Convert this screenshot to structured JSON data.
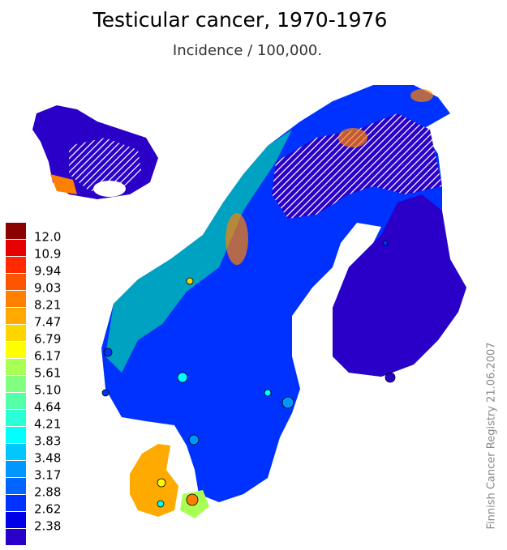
{
  "header": {
    "title": "Testicular cancer, 1970-1976",
    "subtitle": "Incidence / 100,000."
  },
  "legend": {
    "labels": [
      "12.0",
      "10.9",
      "9.94",
      "9.03",
      "8.21",
      "7.47",
      "6.79",
      "6.17",
      "5.61",
      "5.10",
      "4.64",
      "4.21",
      "3.83",
      "3.48",
      "3.17",
      "2.88",
      "2.62",
      "2.38"
    ],
    "colors": [
      "#8b0000",
      "#e60000",
      "#ff2a00",
      "#ff5500",
      "#ff8000",
      "#ffaa00",
      "#ffd500",
      "#ffff00",
      "#aaff55",
      "#80ff80",
      "#55ffaa",
      "#2affd5",
      "#00ffff",
      "#00c8ff",
      "#0096ff",
      "#0064ff",
      "#0032ff",
      "#0000e6",
      "#2a00c8"
    ]
  },
  "credit": "Finnish Cancer Registry 21.06.2007"
}
